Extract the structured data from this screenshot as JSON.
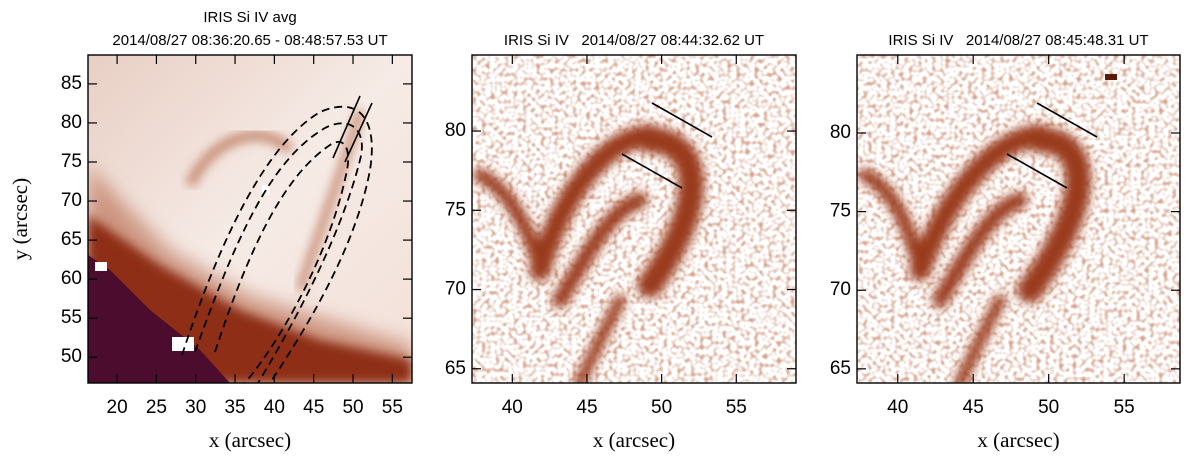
{
  "chart_data": [
    {
      "type": "image",
      "title": "IRIS Si IV avg",
      "subtitle": "2014/08/27 08:36:20.65 - 08:48:57.53 UT",
      "xlabel": "x (arcsec)",
      "ylabel": "y (arcsec)",
      "xlim": [
        16.3,
        57.5
      ],
      "ylim": [
        46.7,
        88.7
      ],
      "xticks": [
        20,
        25,
        30,
        35,
        40,
        45,
        50,
        55
      ],
      "yticks": [
        50,
        55,
        60,
        65,
        70,
        75,
        80,
        85
      ]
    },
    {
      "type": "image",
      "title": "IRIS Si IV   2014/08/27 08:44:32.62 UT",
      "xlabel": "x (arcsec)",
      "xlim": [
        37.3,
        59.0
      ],
      "ylim": [
        64.1,
        84.8
      ],
      "xticks": [
        40,
        45,
        50,
        55
      ],
      "yticks": [
        65,
        70,
        75,
        80
      ]
    },
    {
      "type": "image",
      "title": "IRIS Si IV   2014/08/27 08:45:48.31 UT",
      "xlabel": "x (arcsec)",
      "xlim": [
        37.3,
        58.7
      ],
      "ylim": [
        64.1,
        84.96
      ],
      "xticks": [
        40,
        45,
        50,
        55
      ],
      "yticks": [
        65,
        70,
        75,
        80
      ]
    }
  ]
}
